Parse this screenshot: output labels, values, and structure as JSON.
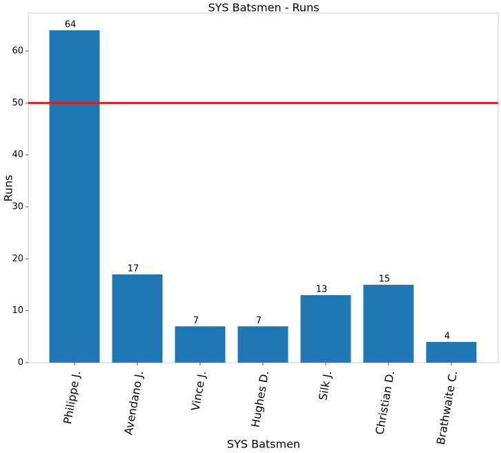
{
  "chart_data": {
    "type": "bar",
    "title": "SYS Batsmen - Runs",
    "x_label": "SYS Batsmen",
    "y_label": "Runs",
    "categories": [
      "Philippe J.",
      "Avendano J.",
      "Vince J.",
      "Hughes D.",
      "Silk J.",
      "Christian D.",
      "Brathwaite C."
    ],
    "values": [
      64,
      17,
      7,
      7,
      13,
      15,
      4
    ],
    "color": "#1f77b4",
    "ylim": [
      0,
      67.3
    ],
    "yticks": [
      0,
      10,
      20,
      30,
      40,
      50,
      60
    ],
    "hline": 50,
    "hline_color": "#e31a1c"
  }
}
